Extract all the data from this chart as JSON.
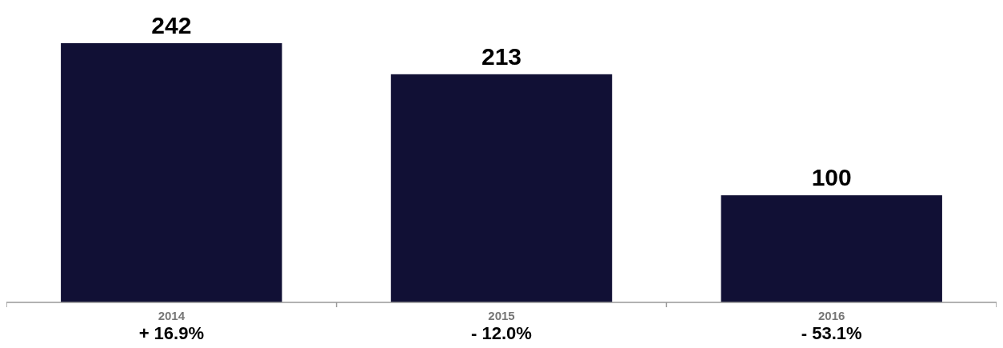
{
  "chart_data": {
    "type": "bar",
    "categories": [
      "2014",
      "2015",
      "2016"
    ],
    "values": [
      242,
      213,
      100
    ],
    "color": "#111035",
    "data_labels": true,
    "annotations": [
      "+ 16.9%",
      "- 12.0%",
      "- 53.1%"
    ]
  }
}
